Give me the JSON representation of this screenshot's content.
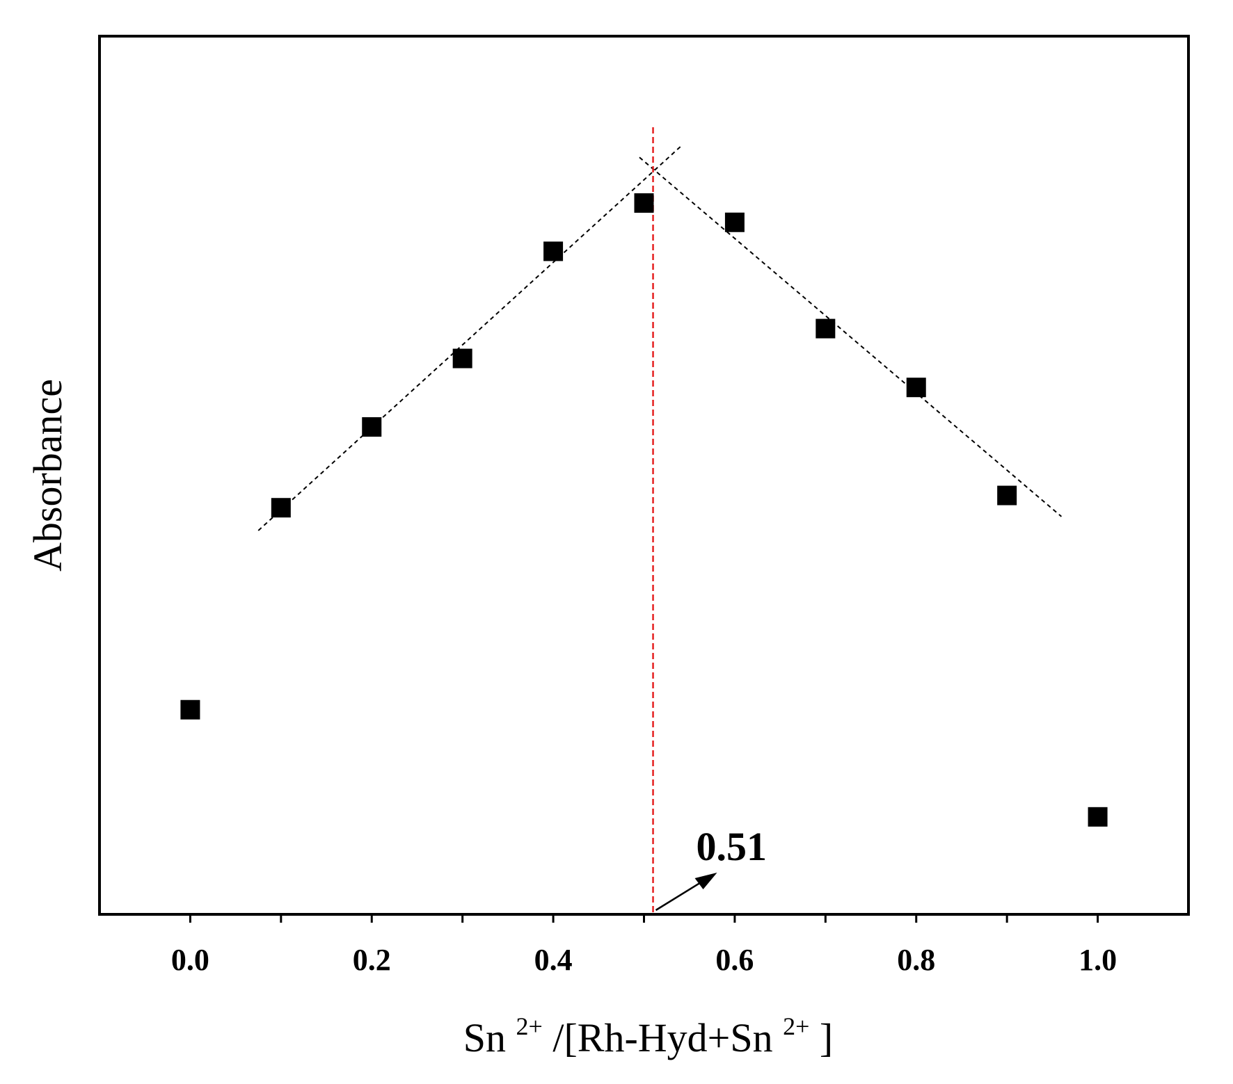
{
  "chart_data": {
    "type": "scatter",
    "xlabel_parts": {
      "base": "Sn",
      "sup": "2+",
      "middle": "/[Rh-Hyd+Sn",
      "sup2": "2+",
      "end": "]"
    },
    "ylabel": "Absorbance",
    "xlim": [
      -0.1,
      1.1
    ],
    "ylim": [
      0.0,
      1.0
    ],
    "x_ticks": [
      0.0,
      0.1,
      0.2,
      0.3,
      0.4,
      0.5,
      0.6,
      0.7,
      0.8,
      0.9,
      1.0
    ],
    "x_tick_labels": [
      {
        "value": 0.0,
        "label": "0.0"
      },
      {
        "value": 0.2,
        "label": "0.2"
      },
      {
        "value": 0.4,
        "label": "0.4"
      },
      {
        "value": 0.6,
        "label": "0.6"
      },
      {
        "value": 0.8,
        "label": "0.8"
      },
      {
        "value": 1.0,
        "label": "1.0"
      }
    ],
    "series": [
      {
        "x": [
          0.0,
          0.1,
          0.2,
          0.3,
          0.4,
          0.5,
          0.6,
          0.7,
          0.8,
          0.9,
          1.0
        ],
        "y": [
          0.233,
          0.463,
          0.555,
          0.633,
          0.755,
          0.81,
          0.788,
          0.667,
          0.6,
          0.477,
          0.111
        ],
        "marker": "square",
        "color": "#000000"
      }
    ],
    "fit_lines": [
      {
        "x": [
          0.075,
          0.54
        ],
        "y": [
          0.437,
          0.874
        ],
        "style": "dashed",
        "color": "#000000"
      },
      {
        "x": [
          0.495,
          0.96
        ],
        "y": [
          0.862,
          0.453
        ],
        "style": "dashed",
        "color": "#000000"
      }
    ],
    "intersection": {
      "x": 0.51,
      "label": "0.51",
      "line_color": "#e52020"
    },
    "grid": false
  }
}
